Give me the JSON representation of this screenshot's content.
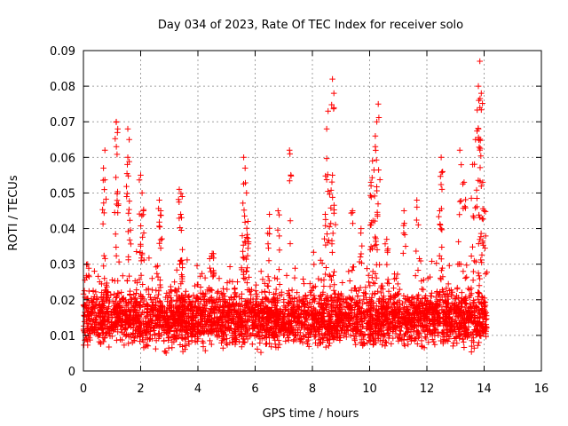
{
  "chart_data": {
    "type": "scatter",
    "title": "Day 034 of 2023, Rate Of TEC Index for receiver solo",
    "xlabel": "GPS time / hours",
    "ylabel": "ROTI / TECUs",
    "xlim": [
      0,
      16
    ],
    "ylim": [
      0,
      0.09
    ],
    "xticks": [
      0,
      2,
      4,
      6,
      8,
      10,
      12,
      14,
      16
    ],
    "yticks": [
      0,
      0.01,
      0.02,
      0.03,
      0.04,
      0.05,
      0.06,
      0.07,
      0.08,
      0.09
    ],
    "ytick_labels": [
      "0",
      "0.01",
      "0.02",
      "0.03",
      "0.04",
      "0.05",
      "0.06",
      "0.07",
      "0.08",
      "0.09"
    ],
    "grid": true,
    "marker": "+",
    "marker_color": "#ff0000",
    "data_coverage_hours": [
      0,
      14.1
    ],
    "baseline_band": [
      0.004,
      0.025
    ],
    "series": [
      {
        "name": "ROTI",
        "notable_points": [
          {
            "x": 0.15,
            "y": 0.03
          },
          {
            "x": 0.7,
            "y": 0.057
          },
          {
            "x": 0.75,
            "y": 0.062
          },
          {
            "x": 1.15,
            "y": 0.07
          },
          {
            "x": 1.2,
            "y": 0.068
          },
          {
            "x": 1.15,
            "y": 0.063
          },
          {
            "x": 1.55,
            "y": 0.068
          },
          {
            "x": 1.6,
            "y": 0.065
          },
          {
            "x": 1.55,
            "y": 0.06
          },
          {
            "x": 2.0,
            "y": 0.055
          },
          {
            "x": 2.05,
            "y": 0.05
          },
          {
            "x": 2.1,
            "y": 0.045
          },
          {
            "x": 2.65,
            "y": 0.048
          },
          {
            "x": 2.7,
            "y": 0.045
          },
          {
            "x": 3.35,
            "y": 0.051
          },
          {
            "x": 3.45,
            "y": 0.049
          },
          {
            "x": 3.4,
            "y": 0.044
          },
          {
            "x": 4.5,
            "y": 0.033
          },
          {
            "x": 5.6,
            "y": 0.06
          },
          {
            "x": 5.65,
            "y": 0.057
          },
          {
            "x": 5.7,
            "y": 0.05
          },
          {
            "x": 5.55,
            "y": 0.038
          },
          {
            "x": 5.75,
            "y": 0.042
          },
          {
            "x": 6.5,
            "y": 0.044
          },
          {
            "x": 6.8,
            "y": 0.045
          },
          {
            "x": 7.2,
            "y": 0.062
          },
          {
            "x": 8.5,
            "y": 0.068
          },
          {
            "x": 8.55,
            "y": 0.073
          },
          {
            "x": 8.7,
            "y": 0.082
          },
          {
            "x": 8.75,
            "y": 0.078
          },
          {
            "x": 8.7,
            "y": 0.055
          },
          {
            "x": 8.45,
            "y": 0.044
          },
          {
            "x": 9.4,
            "y": 0.045
          },
          {
            "x": 9.7,
            "y": 0.04
          },
          {
            "x": 10.1,
            "y": 0.059
          },
          {
            "x": 10.05,
            "y": 0.052
          },
          {
            "x": 10.3,
            "y": 0.075
          },
          {
            "x": 10.25,
            "y": 0.07
          },
          {
            "x": 10.2,
            "y": 0.066
          },
          {
            "x": 10.2,
            "y": 0.063
          },
          {
            "x": 10.6,
            "y": 0.037
          },
          {
            "x": 11.2,
            "y": 0.045
          },
          {
            "x": 11.65,
            "y": 0.048
          },
          {
            "x": 12.5,
            "y": 0.06
          },
          {
            "x": 12.55,
            "y": 0.056
          },
          {
            "x": 12.45,
            "y": 0.045
          },
          {
            "x": 13.15,
            "y": 0.062
          },
          {
            "x": 13.3,
            "y": 0.053
          },
          {
            "x": 13.6,
            "y": 0.058
          },
          {
            "x": 13.7,
            "y": 0.065
          },
          {
            "x": 13.8,
            "y": 0.068
          },
          {
            "x": 13.85,
            "y": 0.087
          },
          {
            "x": 13.8,
            "y": 0.08
          },
          {
            "x": 13.9,
            "y": 0.078
          },
          {
            "x": 13.85,
            "y": 0.074
          },
          {
            "x": 13.95,
            "y": 0.053
          },
          {
            "x": 14.0,
            "y": 0.045
          }
        ]
      }
    ]
  }
}
